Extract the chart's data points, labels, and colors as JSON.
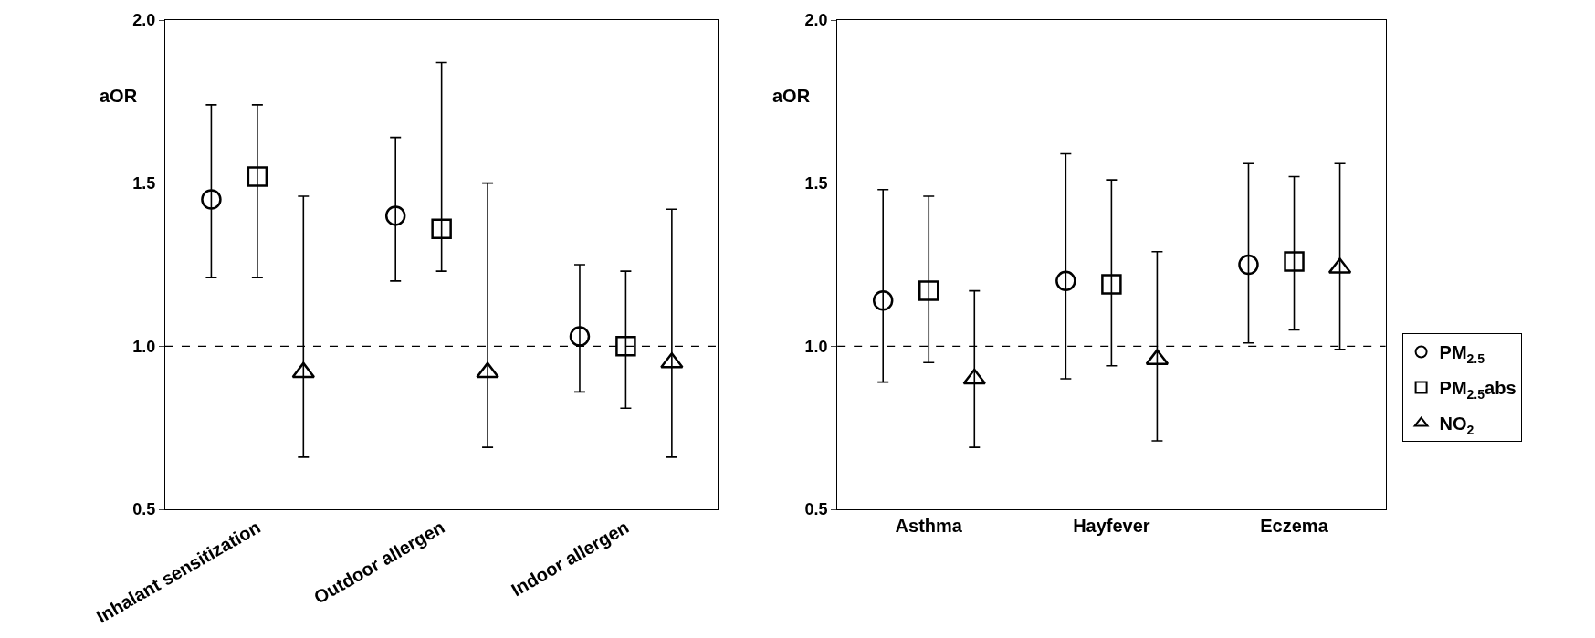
{
  "chart_data": [
    {
      "type": "scatter",
      "ylabel": "aOR",
      "categories": [
        "Inhalant sensitization",
        "Outdoor allergen",
        "Indoor allergen"
      ],
      "ylim": [
        0.5,
        2.0
      ],
      "yticks": [
        {
          "value": 0.5,
          "label": "0.5"
        },
        {
          "value": 1.0,
          "label": "1.0"
        },
        {
          "value": 1.5,
          "label": "1.5"
        },
        {
          "value": 2.0,
          "label": "2.0"
        }
      ],
      "ref_lines": [
        {
          "axis": "y",
          "value": 1.0,
          "color": "#000000",
          "line_style": "dashed"
        }
      ],
      "legend": "right",
      "series": [
        {
          "name": "PM$_{2.5}$",
          "color": "#000000",
          "marker": "circle",
          "values": [
            1.45,
            1.4,
            1.03
          ],
          "errors": [
            [
              1.21,
              1.74
            ],
            [
              1.2,
              1.64
            ],
            [
              0.86,
              1.25
            ]
          ]
        },
        {
          "name": "PM$_{2.5}$abs",
          "color": "#000000",
          "marker": "square",
          "values": [
            1.52,
            1.36,
            1.0
          ],
          "errors": [
            [
              1.21,
              1.74
            ],
            [
              1.23,
              1.87
            ],
            [
              0.81,
              1.23
            ]
          ]
        },
        {
          "name": "NO$_{2}$",
          "color": "#000000",
          "marker": "triangle",
          "values": [
            0.92,
            0.92,
            0.95
          ],
          "errors": [
            [
              0.66,
              1.46
            ],
            [
              0.69,
              1.5
            ],
            [
              0.66,
              1.42
            ]
          ]
        }
      ]
    },
    {
      "type": "scatter",
      "ylabel": "aOR",
      "categories": [
        "Asthma",
        "Hayfever",
        "Eczema"
      ],
      "ylim": [
        0.5,
        2.0
      ],
      "yticks": [
        {
          "value": 0.5,
          "label": "0.5"
        },
        {
          "value": 1.0,
          "label": "1.0"
        },
        {
          "value": 1.5,
          "label": "1.5"
        },
        {
          "value": 2.0,
          "label": "2.0"
        }
      ],
      "ref_lines": [
        {
          "axis": "y",
          "value": 1.0,
          "color": "#000000",
          "line_style": "dashed"
        }
      ],
      "legend": "right",
      "series": [
        {
          "name": "PM$_{2.5}$",
          "color": "#000000",
          "marker": "circle",
          "values": [
            1.14,
            1.2,
            1.25
          ],
          "errors": [
            [
              0.89,
              1.48
            ],
            [
              0.9,
              1.59
            ],
            [
              1.01,
              1.56
            ]
          ]
        },
        {
          "name": "PM$_{2.5}$abs",
          "color": "#000000",
          "marker": "square",
          "values": [
            1.17,
            1.19,
            1.26
          ],
          "errors": [
            [
              0.95,
              1.46
            ],
            [
              0.94,
              1.51
            ],
            [
              1.05,
              1.52
            ]
          ]
        },
        {
          "name": "NO$_{2}$",
          "color": "#000000",
          "marker": "triangle",
          "values": [
            0.9,
            0.96,
            1.24
          ],
          "errors": [
            [
              0.69,
              1.17
            ],
            [
              0.71,
              1.29
            ],
            [
              0.99,
              1.56
            ]
          ]
        }
      ]
    }
  ]
}
